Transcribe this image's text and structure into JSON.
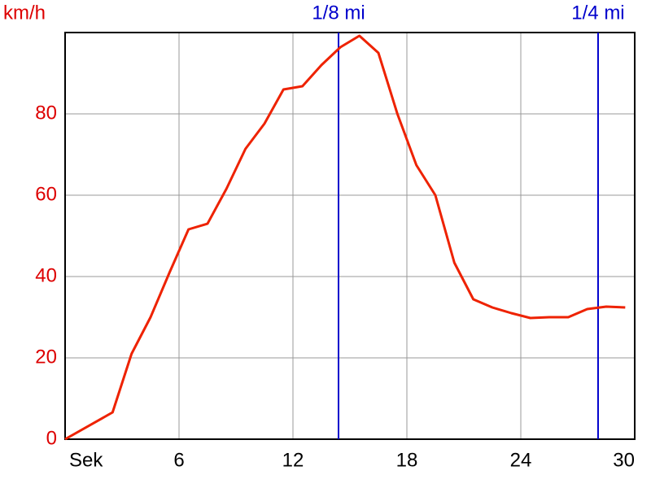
{
  "chart_data": {
    "type": "line",
    "y_label": "km/h",
    "x": [
      0,
      2.5,
      3.5,
      4.5,
      5.5,
      6.5,
      7.5,
      8.5,
      9.5,
      10.5,
      11.5,
      12.5,
      13.5,
      14.5,
      15.5,
      16.5,
      17.5,
      18.5,
      19.5,
      20.5,
      21.5,
      22.5,
      23.5,
      24.5,
      25.5,
      26.5,
      27.5,
      28.5,
      29.5
    ],
    "series": [
      {
        "color": "#ee2200",
        "values": [
          0,
          6.6,
          21,
          30,
          41,
          51.6,
          53,
          61.6,
          71.4,
          77.6,
          86,
          86.8,
          92,
          96.4,
          99.2,
          95,
          80,
          67.4,
          60,
          43.4,
          34.4,
          32.4,
          31,
          29.8,
          30,
          30,
          32,
          32.6,
          32.4
        ]
      }
    ],
    "xlim": [
      0,
      30
    ],
    "xticks": [
      {
        "value": 0,
        "label": "Sek"
      },
      6,
      12,
      18,
      24,
      30
    ],
    "ylim": [
      0,
      100
    ],
    "yticks": [
      0,
      20,
      40,
      60,
      80
    ],
    "grid": true,
    "y_tick_color": "#dd0000",
    "markers": [
      {
        "label": "1/8 mi",
        "x": 14.4
      },
      {
        "label": "1/4 mi",
        "x": 28.07
      }
    ],
    "marker_color": "#0000cc"
  }
}
